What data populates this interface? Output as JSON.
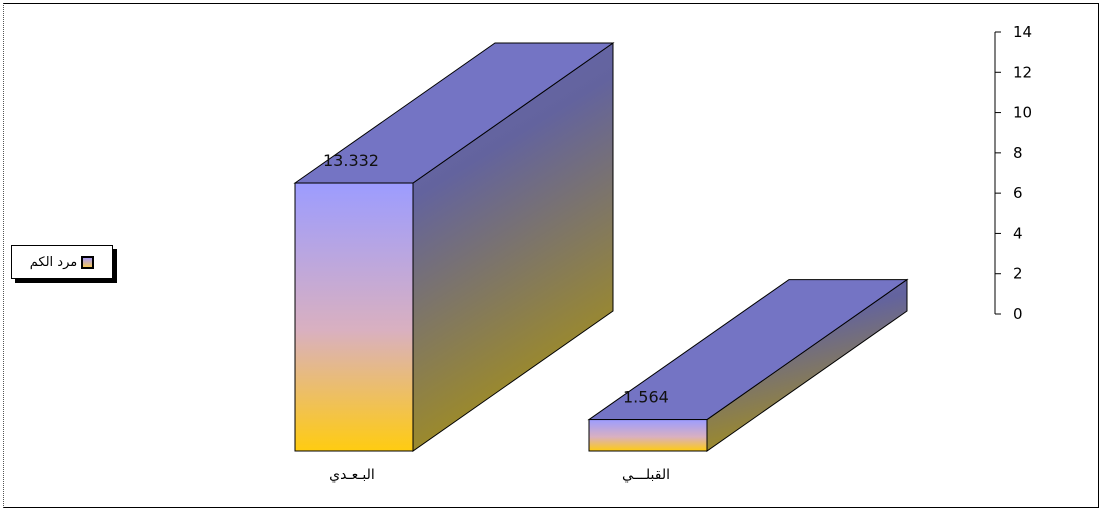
{
  "chart_data": {
    "type": "bar",
    "categories": [
      "البـعـدي",
      "القبلـــي"
    ],
    "series": [
      {
        "name": "مرد الكم",
        "values": [
          13.332,
          1.564
        ]
      }
    ],
    "data_labels": [
      "13.332",
      "1.564"
    ],
    "yticks": [
      "14",
      "12",
      "10",
      "8",
      "6",
      "4",
      "2",
      "0"
    ],
    "ylim": [
      0,
      14
    ],
    "legend_position": "left",
    "style": "3d",
    "colors": {
      "top": "#7474c4",
      "front_top": "#9c9cff",
      "front_bottom": "#ffcc11",
      "side_top": "#6a6ab2",
      "side_bottom": "#a38f1c"
    }
  }
}
